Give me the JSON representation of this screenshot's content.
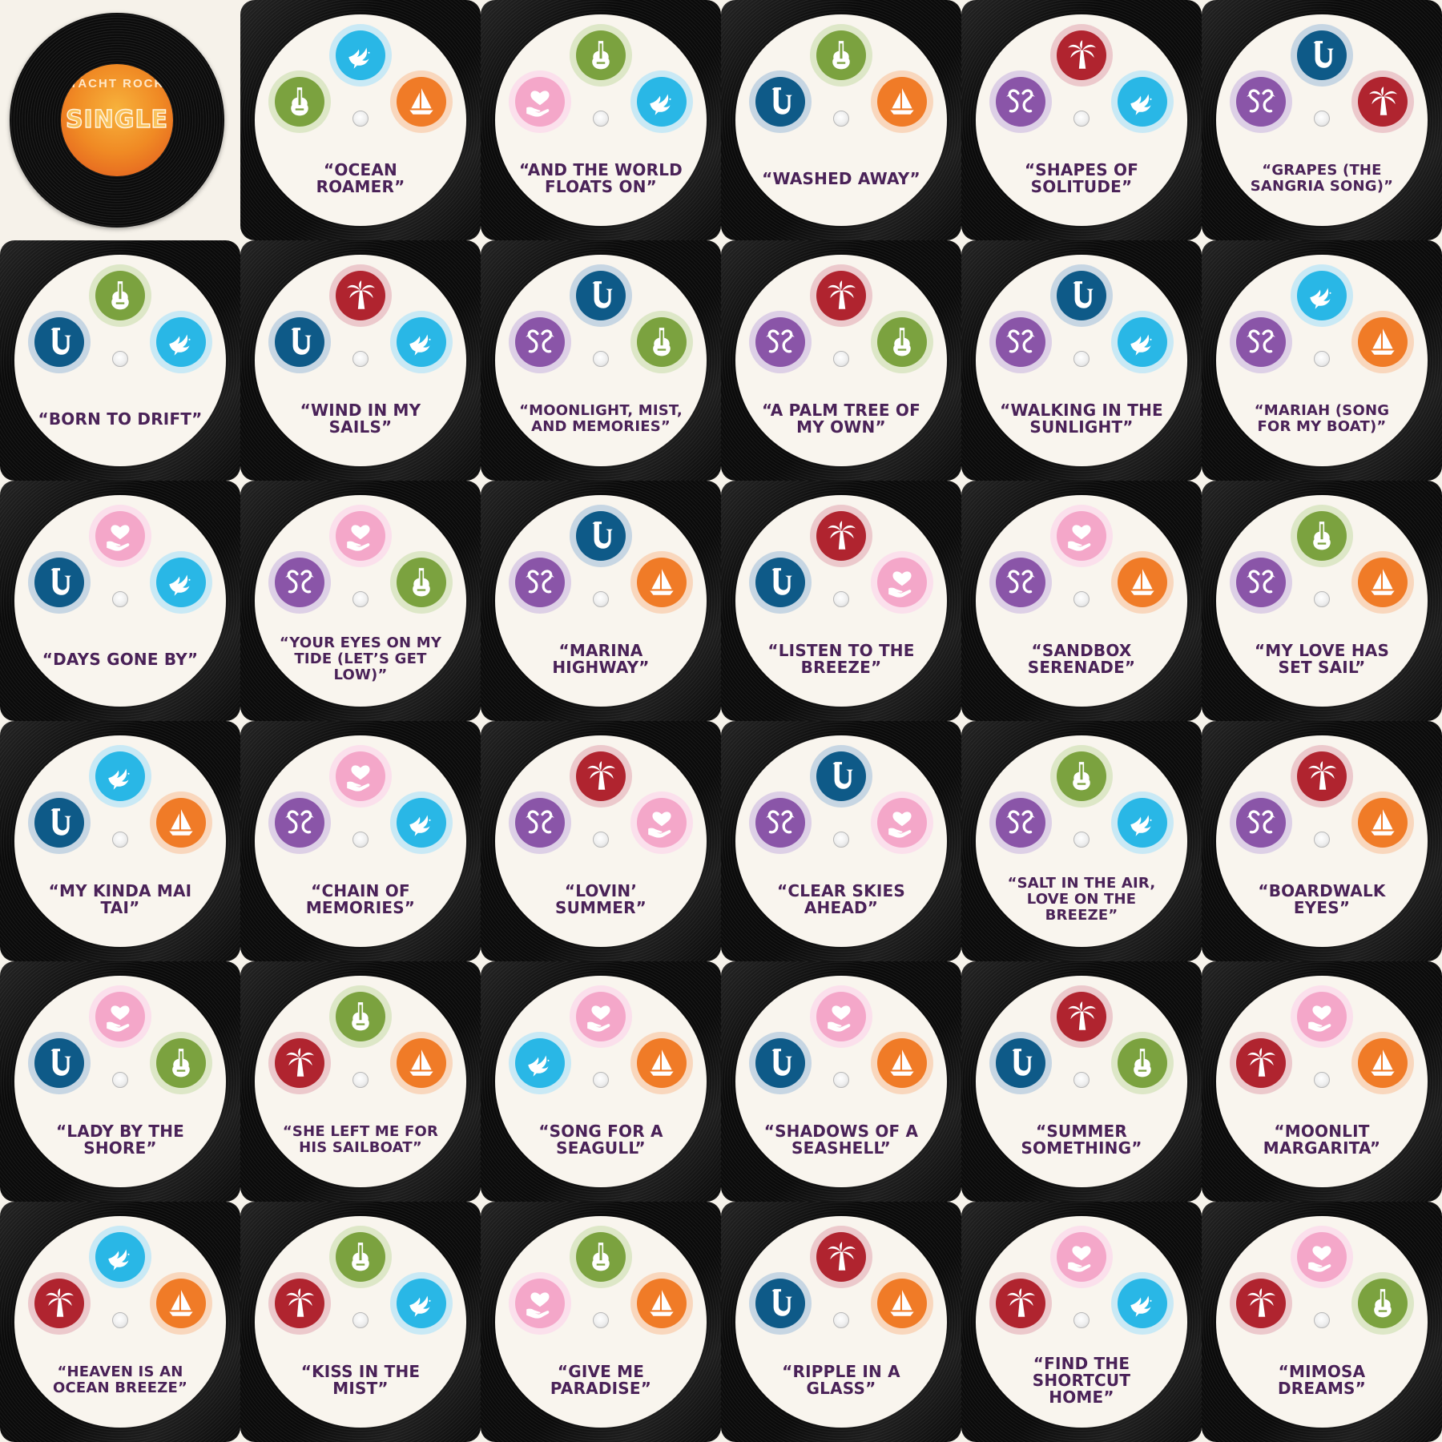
{
  "logo": {
    "top_text": "YACHT ROCK",
    "main_text": "SINGLE"
  },
  "colors": {
    "title_text": "#4a2258",
    "icon_bg": {
      "dove": "#29b7e6",
      "guitar": "#7ba23f",
      "sailboat": "#f07b27",
      "heart": "#f4a7c9",
      "sax": "#0e5a88",
      "palm": "#b0242f",
      "flamingo": "#8a55a8"
    },
    "icon_ring": {
      "dove": "#c9e9f5",
      "guitar": "#dde7c7",
      "sailboat": "#f9d7bd",
      "heart": "#fbe0ec",
      "sax": "#c7d6e3",
      "palm": "#ecc9cc",
      "flamingo": "#ddd0e6"
    }
  },
  "cards": [
    {
      "title": "“OCEAN ROAMER”",
      "icons": [
        "dove-icon",
        "guitar-icon",
        "sailboat-icon"
      ]
    },
    {
      "title": "“AND THE WORLD FLOATS ON”",
      "icons": [
        "guitar-icon",
        "heart-icon",
        "dove-icon"
      ]
    },
    {
      "title": "“WASHED AWAY”",
      "icons": [
        "guitar-icon",
        "sax-icon",
        "sailboat-icon"
      ]
    },
    {
      "title": "“SHAPES OF SOLITUDE”",
      "icons": [
        "palm-icon",
        "flamingo-icon",
        "dove-icon"
      ]
    },
    {
      "title": "“GRAPES (THE SANGRIA SONG)”",
      "icons": [
        "sax-icon",
        "flamingo-icon",
        "palm-icon"
      ]
    },
    {
      "title": "“BORN TO DRIFT”",
      "icons": [
        "guitar-icon",
        "sax-icon",
        "dove-icon"
      ]
    },
    {
      "title": "“WIND IN MY SAILS”",
      "icons": [
        "palm-icon",
        "sax-icon",
        "dove-icon"
      ]
    },
    {
      "title": "“MOONLIGHT, MIST, AND MEMORIES”",
      "icons": [
        "sax-icon",
        "flamingo-icon",
        "guitar-icon"
      ]
    },
    {
      "title": "“A PALM TREE OF MY OWN”",
      "icons": [
        "palm-icon",
        "flamingo-icon",
        "guitar-icon"
      ]
    },
    {
      "title": "“WALKING IN THE SUNLIGHT”",
      "icons": [
        "sax-icon",
        "flamingo-icon",
        "dove-icon"
      ]
    },
    {
      "title": "“MARIAH (SONG FOR MY BOAT)”",
      "icons": [
        "dove-icon",
        "flamingo-icon",
        "sailboat-icon"
      ]
    },
    {
      "title": "“DAYS GONE BY”",
      "icons": [
        "heart-icon",
        "sax-icon",
        "dove-icon"
      ]
    },
    {
      "title": "“YOUR EYES ON MY TIDE (LET’S GET LOW)”",
      "icons": [
        "heart-icon",
        "flamingo-icon",
        "guitar-icon"
      ]
    },
    {
      "title": "“MARINA HIGHWAY”",
      "icons": [
        "sax-icon",
        "flamingo-icon",
        "sailboat-icon"
      ]
    },
    {
      "title": "“LISTEN TO THE BREEZE”",
      "icons": [
        "palm-icon",
        "sax-icon",
        "heart-icon"
      ]
    },
    {
      "title": "“SANDBOX SERENADE”",
      "icons": [
        "heart-icon",
        "flamingo-icon",
        "sailboat-icon"
      ]
    },
    {
      "title": "“MY LOVE HAS SET SAIL”",
      "icons": [
        "guitar-icon",
        "flamingo-icon",
        "sailboat-icon"
      ]
    },
    {
      "title": "“MY KINDA MAI TAI”",
      "icons": [
        "dove-icon",
        "sax-icon",
        "sailboat-icon"
      ]
    },
    {
      "title": "“CHAIN OF MEMORIES”",
      "icons": [
        "heart-icon",
        "flamingo-icon",
        "dove-icon"
      ]
    },
    {
      "title": "“LOVIN’ SUMMER”",
      "icons": [
        "palm-icon",
        "flamingo-icon",
        "heart-icon"
      ]
    },
    {
      "title": "“CLEAR SKIES AHEAD”",
      "icons": [
        "sax-icon",
        "flamingo-icon",
        "heart-icon"
      ]
    },
    {
      "title": "“SALT IN THE AIR, LOVE ON THE BREEZE”",
      "icons": [
        "guitar-icon",
        "flamingo-icon",
        "dove-icon"
      ]
    },
    {
      "title": "“BOARDWALK EYES”",
      "icons": [
        "palm-icon",
        "flamingo-icon",
        "sailboat-icon"
      ]
    },
    {
      "title": "“LADY BY THE SHORE”",
      "icons": [
        "heart-icon",
        "sax-icon",
        "guitar-icon"
      ]
    },
    {
      "title": "“SHE LEFT ME FOR HIS SAILBOAT”",
      "icons": [
        "guitar-icon",
        "palm-icon",
        "sailboat-icon"
      ]
    },
    {
      "title": "“SONG FOR A SEAGULL”",
      "icons": [
        "heart-icon",
        "dove-icon",
        "sailboat-icon"
      ]
    },
    {
      "title": "“SHADOWS OF A SEASHELL”",
      "icons": [
        "heart-icon",
        "sax-icon",
        "sailboat-icon"
      ]
    },
    {
      "title": "“SUMMER SOMETHING”",
      "icons": [
        "palm-icon",
        "sax-icon",
        "guitar-icon"
      ]
    },
    {
      "title": "“MOONLIT MARGARITA”",
      "icons": [
        "heart-icon",
        "palm-icon",
        "sailboat-icon"
      ]
    },
    {
      "title": "“HEAVEN IS AN OCEAN BREEZE”",
      "icons": [
        "dove-icon",
        "palm-icon",
        "sailboat-icon"
      ]
    },
    {
      "title": "“KISS IN THE MIST”",
      "icons": [
        "guitar-icon",
        "palm-icon",
        "dove-icon"
      ]
    },
    {
      "title": "“GIVE ME PARADISE”",
      "icons": [
        "guitar-icon",
        "heart-icon",
        "sailboat-icon"
      ]
    },
    {
      "title": "“RIPPLE IN A GLASS”",
      "icons": [
        "palm-icon",
        "sax-icon",
        "sailboat-icon"
      ]
    },
    {
      "title": "“FIND THE SHORTCUT HOME”",
      "icons": [
        "heart-icon",
        "palm-icon",
        "dove-icon"
      ]
    },
    {
      "title": "“MIMOSA DREAMS”",
      "icons": [
        "heart-icon",
        "palm-icon",
        "guitar-icon"
      ]
    }
  ]
}
